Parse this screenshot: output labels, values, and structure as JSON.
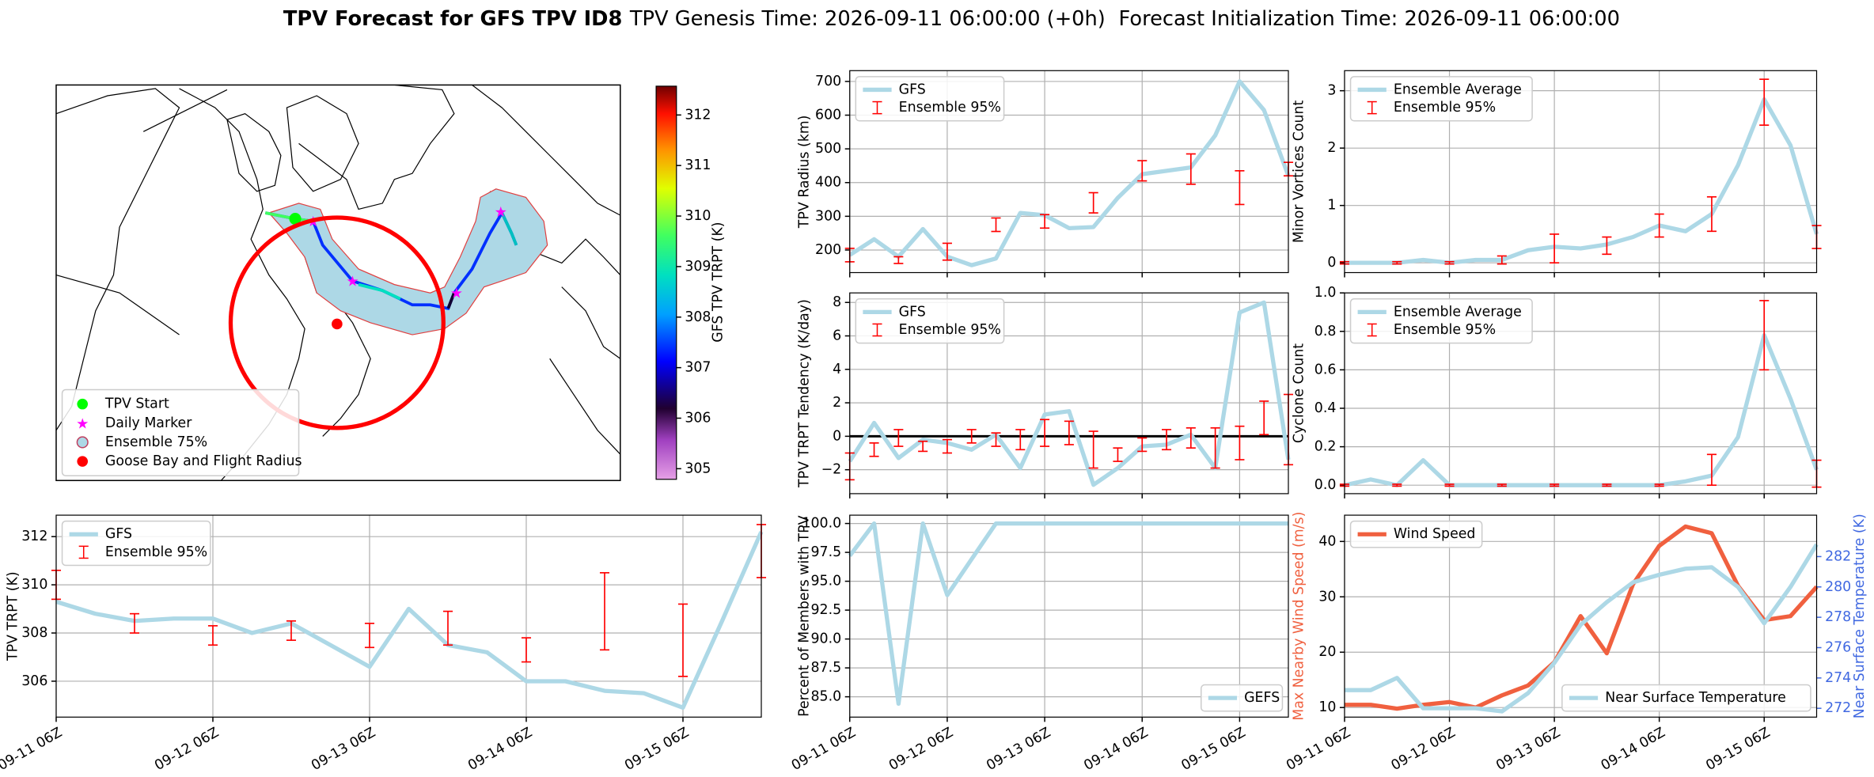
{
  "title": {
    "bold": "TPV Forecast for GFS TPV ID8",
    "genesis": "TPV Genesis Time: 2026-09-11 06:00:00 (+0h)",
    "init": "Forecast Initialization Time: 2026-09-11 06:00:00"
  },
  "chart_data": [
    {
      "type": "map",
      "colorbar_label": "GFS TPV TRPT (K)",
      "clim": [
        304.79,
        312.57
      ],
      "cticks": [
        305,
        306,
        307,
        308,
        309,
        310,
        311,
        312
      ],
      "legend_corner": "lower left",
      "legend": [
        {
          "name": "TPV Start",
          "color": "#00ff00",
          "marker": "circle"
        },
        {
          "name": "Daily Marker",
          "color": "#ff00ff",
          "marker": "star"
        },
        {
          "name": "Ensemble 75%",
          "color": "#add8e6",
          "marker": "ring"
        },
        {
          "name": "Goose Bay and Flight Radius",
          "color": "#ff0000",
          "marker": "circle"
        }
      ]
    },
    {
      "type": "line",
      "ylabel": "TPV Radius (km)",
      "ylim": [
        133,
        732
      ],
      "yticks": [
        200,
        300,
        400,
        500,
        600,
        700
      ],
      "grid": true,
      "sharex": true,
      "legend": "upper left",
      "categories": [
        "09-11 06Z",
        "09-11 12Z",
        "09-11 18Z",
        "09-12 00Z",
        "09-12 06Z",
        "09-12 12Z",
        "09-12 18Z",
        "09-13 00Z",
        "09-13 06Z",
        "09-13 12Z",
        "09-13 18Z",
        "09-14 00Z",
        "09-14 06Z",
        "09-14 12Z",
        "09-14 18Z",
        "09-15 00Z",
        "09-15 06Z",
        "09-15 12Z",
        "09-15 18Z"
      ],
      "xticks": [
        "09-11 06Z",
        "09-12 06Z",
        "09-13 06Z",
        "09-14 06Z",
        "09-15 06Z"
      ],
      "series": [
        {
          "name": "GFS",
          "color": "#add8e6",
          "values": [
            185,
            232,
            180,
            262,
            180,
            155,
            175,
            310,
            303,
            265,
            268,
            355,
            425,
            435,
            445,
            540,
            700,
            615,
            420
          ]
        },
        {
          "name": "Ensemble 95%",
          "color": "#ff0000",
          "type": "errorbar",
          "x": [
            "09-11 06Z",
            "09-11 18Z",
            "09-12 06Z",
            "09-12 18Z",
            "09-13 06Z",
            "09-13 18Z",
            "09-14 06Z",
            "09-14 18Z",
            "09-15 06Z",
            "09-15 18Z"
          ],
          "values": [
            185,
            170,
            195,
            275,
            285,
            340,
            435,
            440,
            385,
            440
          ],
          "errors": [
            20,
            10,
            25,
            20,
            20,
            30,
            30,
            45,
            50,
            20
          ]
        }
      ]
    },
    {
      "type": "line",
      "ylabel": "Minor Vortices Count",
      "ylim": [
        -0.17,
        3.35
      ],
      "yticks": [
        0,
        1,
        2,
        3
      ],
      "grid": true,
      "sharex": true,
      "legend": "upper left",
      "categories": [
        "09-11 06Z",
        "09-11 12Z",
        "09-11 18Z",
        "09-12 00Z",
        "09-12 06Z",
        "09-12 12Z",
        "09-12 18Z",
        "09-13 00Z",
        "09-13 06Z",
        "09-13 12Z",
        "09-13 18Z",
        "09-14 00Z",
        "09-14 06Z",
        "09-14 12Z",
        "09-14 18Z",
        "09-15 00Z",
        "09-15 06Z",
        "09-15 12Z",
        "09-15 18Z"
      ],
      "xticks": [
        "09-11 06Z",
        "09-12 06Z",
        "09-13 06Z",
        "09-14 06Z",
        "09-15 06Z"
      ],
      "series": [
        {
          "name": "Ensemble Average",
          "color": "#add8e6",
          "values": [
            0,
            0,
            0,
            0.05,
            0,
            0.05,
            0.05,
            0.22,
            0.28,
            0.25,
            0.32,
            0.45,
            0.65,
            0.55,
            0.85,
            1.7,
            2.85,
            2.05,
            0.5
          ]
        },
        {
          "name": "Ensemble 95%",
          "color": "#ff0000",
          "type": "errorbar",
          "x": [
            "09-11 06Z",
            "09-11 18Z",
            "09-12 06Z",
            "09-12 18Z",
            "09-13 06Z",
            "09-13 18Z",
            "09-14 06Z",
            "09-14 18Z",
            "09-15 06Z",
            "09-15 18Z"
          ],
          "values": [
            0,
            0,
            0,
            0.05,
            0.25,
            0.3,
            0.65,
            0.85,
            2.8,
            0.45
          ],
          "errors": [
            0.02,
            0.02,
            0.02,
            0.07,
            0.25,
            0.15,
            0.2,
            0.3,
            0.4,
            0.2
          ]
        }
      ]
    },
    {
      "type": "line",
      "ylabel": "TPV TRPT Tendency (K/day)",
      "ylim": [
        -3.43,
        8.57
      ],
      "yticks": [
        {
          "value": -2,
          "label": "−2"
        },
        0,
        2,
        4,
        6,
        8
      ],
      "grid": true,
      "sharex": true,
      "legend": "upper left",
      "hline": 0,
      "categories": [
        "09-11 06Z",
        "09-11 12Z",
        "09-11 18Z",
        "09-12 00Z",
        "09-12 06Z",
        "09-12 12Z",
        "09-12 18Z",
        "09-13 00Z",
        "09-13 06Z",
        "09-13 12Z",
        "09-13 18Z",
        "09-14 00Z",
        "09-14 06Z",
        "09-14 12Z",
        "09-14 18Z",
        "09-15 00Z",
        "09-15 06Z",
        "09-15 12Z",
        "09-15 18Z"
      ],
      "xticks": [
        "09-11 06Z",
        "09-12 06Z",
        "09-13 06Z",
        "09-14 06Z",
        "09-15 06Z"
      ],
      "series": [
        {
          "name": "GFS",
          "color": "#add8e6",
          "values": [
            -1.5,
            0.8,
            -1.3,
            -0.2,
            -0.4,
            -0.8,
            0.1,
            -1.9,
            1.3,
            1.5,
            -2.9,
            -1.9,
            -0.6,
            -0.5,
            0.1,
            -1.9,
            7.4,
            8.0,
            -1.4
          ]
        },
        {
          "name": "Ensemble 95%",
          "color": "#ff0000",
          "type": "errorbar",
          "x": [
            "09-11 06Z",
            "09-11 12Z",
            "09-11 18Z",
            "09-12 00Z",
            "09-12 06Z",
            "09-12 12Z",
            "09-12 18Z",
            "09-13 00Z",
            "09-13 06Z",
            "09-13 12Z",
            "09-13 18Z",
            "09-14 00Z",
            "09-14 06Z",
            "09-14 12Z",
            "09-14 18Z",
            "09-15 00Z",
            "09-15 06Z",
            "09-15 12Z",
            "09-15 18Z"
          ],
          "values": [
            -1.8,
            -0.8,
            -0.1,
            -0.6,
            -0.6,
            0,
            -0.2,
            -0.2,
            0.2,
            0.2,
            -0.8,
            -1.1,
            -0.5,
            -0.2,
            -0.1,
            -0.7,
            -0.4,
            1.1,
            0.4
          ],
          "errors": [
            0.8,
            0.4,
            0.5,
            0.3,
            0.4,
            0.4,
            0.4,
            0.6,
            0.8,
            0.7,
            1.1,
            0.4,
            0.4,
            0.6,
            0.6,
            1.2,
            1.0,
            1.0,
            2.1
          ]
        }
      ]
    },
    {
      "type": "line",
      "ylabel": "Cyclone Count",
      "ylim": [
        -0.044,
        1.0
      ],
      "yticks": [
        {
          "value": 0,
          "label": "0.0"
        },
        0.2,
        0.4,
        0.6,
        0.8,
        {
          "value": 1,
          "label": "1.0"
        }
      ],
      "grid": true,
      "sharex": true,
      "legend": "upper left",
      "categories": [
        "09-11 06Z",
        "09-11 12Z",
        "09-11 18Z",
        "09-12 00Z",
        "09-12 06Z",
        "09-12 12Z",
        "09-12 18Z",
        "09-13 00Z",
        "09-13 06Z",
        "09-13 12Z",
        "09-13 18Z",
        "09-14 00Z",
        "09-14 06Z",
        "09-14 12Z",
        "09-14 18Z",
        "09-15 00Z",
        "09-15 06Z",
        "09-15 12Z",
        "09-15 18Z"
      ],
      "xticks": [
        "09-11 06Z",
        "09-12 06Z",
        "09-13 06Z",
        "09-14 06Z",
        "09-15 06Z"
      ],
      "series": [
        {
          "name": "Ensemble Average",
          "color": "#add8e6",
          "values": [
            0,
            0.03,
            0,
            0.13,
            0,
            0,
            0,
            0,
            0,
            0,
            0,
            0,
            0,
            0.02,
            0.05,
            0.25,
            0.78,
            0.45,
            0.08
          ]
        },
        {
          "name": "Ensemble 95%",
          "color": "#ff0000",
          "type": "errorbar",
          "x": [
            "09-11 06Z",
            "09-11 18Z",
            "09-12 06Z",
            "09-12 18Z",
            "09-13 06Z",
            "09-13 18Z",
            "09-14 06Z",
            "09-14 18Z",
            "09-15 06Z",
            "09-15 18Z"
          ],
          "values": [
            0,
            0,
            0,
            0,
            0,
            0,
            0,
            0.08,
            0.78,
            0.06
          ],
          "errors": [
            0.005,
            0.005,
            0.005,
            0.005,
            0.005,
            0.005,
            0.005,
            0.08,
            0.18,
            0.07
          ]
        }
      ]
    },
    {
      "type": "line",
      "ylabel": "TPV TRPT (K)",
      "ylim": [
        304.51,
        312.89
      ],
      "yticks": [
        306,
        308,
        310,
        312
      ],
      "grid": true,
      "legend": "upper left",
      "categories": [
        "09-11 06Z",
        "09-11 12Z",
        "09-11 18Z",
        "09-12 00Z",
        "09-12 06Z",
        "09-12 12Z",
        "09-12 18Z",
        "09-13 00Z",
        "09-13 06Z",
        "09-13 12Z",
        "09-13 18Z",
        "09-14 00Z",
        "09-14 06Z",
        "09-14 12Z",
        "09-14 18Z",
        "09-15 00Z",
        "09-15 06Z",
        "09-15 12Z",
        "09-15 18Z"
      ],
      "xticks": [
        "09-11 06Z",
        "09-12 06Z",
        "09-13 06Z",
        "09-14 06Z",
        "09-15 06Z"
      ],
      "series": [
        {
          "name": "GFS",
          "color": "#add8e6",
          "values": [
            309.3,
            308.8,
            308.5,
            308.6,
            308.6,
            308.0,
            308.4,
            307.5,
            306.6,
            309.0,
            307.5,
            307.2,
            306.0,
            306.0,
            305.6,
            305.5,
            304.9,
            308.5,
            312.2
          ]
        },
        {
          "name": "Ensemble 95%",
          "color": "#ff0000",
          "type": "errorbar",
          "x": [
            "09-11 06Z",
            "09-11 18Z",
            "09-12 06Z",
            "09-12 18Z",
            "09-13 06Z",
            "09-13 18Z",
            "09-14 06Z",
            "09-14 18Z",
            "09-15 06Z",
            "09-15 18Z"
          ],
          "values": [
            310.0,
            308.4,
            307.9,
            308.1,
            307.9,
            308.2,
            307.3,
            308.9,
            307.7,
            311.4
          ],
          "errors": [
            0.6,
            0.4,
            0.4,
            0.4,
            0.5,
            0.7,
            0.5,
            1.6,
            1.5,
            1.1
          ]
        }
      ]
    },
    {
      "type": "line",
      "ylabel": "Percent of Members with TPV",
      "ylim": [
        83.24,
        100.72
      ],
      "yticks": [
        {
          "value": 85,
          "label": "85.0"
        },
        87.5,
        {
          "value": 90,
          "label": "90.0"
        },
        92.5,
        {
          "value": 95,
          "label": "95.0"
        },
        97.5,
        {
          "value": 100,
          "label": "100.0"
        }
      ],
      "grid": true,
      "legend": "lower right",
      "categories": [
        "09-11 06Z",
        "09-11 12Z",
        "09-11 18Z",
        "09-12 00Z",
        "09-12 06Z",
        "09-12 12Z",
        "09-12 18Z",
        "09-13 00Z",
        "09-13 06Z",
        "09-13 12Z",
        "09-13 18Z",
        "09-14 00Z",
        "09-14 06Z",
        "09-14 12Z",
        "09-14 18Z",
        "09-15 00Z",
        "09-15 06Z",
        "09-15 12Z",
        "09-15 18Z"
      ],
      "xticks": [
        "09-11 06Z",
        "09-12 06Z",
        "09-13 06Z",
        "09-14 06Z",
        "09-15 06Z"
      ],
      "series": [
        {
          "name": "GEFS",
          "color": "#add8e6",
          "values": [
            97.2,
            100,
            84.4,
            100,
            93.8,
            96.9,
            100,
            100,
            100,
            100,
            100,
            100,
            100,
            100,
            100,
            100,
            100,
            100,
            100
          ]
        }
      ]
    },
    {
      "type": "line",
      "ylabel": "Max Nearby Wind Speed (m/s)",
      "ylabel_color": "#f0603f",
      "y2label": "Near Surface Temperature (K)",
      "y2label_color": "#4169e1",
      "ylim": [
        8.27,
        44.75
      ],
      "yticks": [
        10,
        20,
        30,
        40
      ],
      "y2lim": [
        271.42,
        284.73
      ],
      "y2ticks": [
        272,
        274,
        276,
        278,
        280,
        282
      ],
      "grid": true,
      "legend": "upper left",
      "categories": [
        "09-11 06Z",
        "09-11 12Z",
        "09-11 18Z",
        "09-12 00Z",
        "09-12 06Z",
        "09-12 12Z",
        "09-12 18Z",
        "09-13 00Z",
        "09-13 06Z",
        "09-13 12Z",
        "09-13 18Z",
        "09-14 00Z",
        "09-14 06Z",
        "09-14 12Z",
        "09-14 18Z",
        "09-15 00Z",
        "09-15 06Z",
        "09-15 12Z",
        "09-15 18Z"
      ],
      "xticks": [
        "09-11 06Z",
        "09-12 06Z",
        "09-13 06Z",
        "09-14 06Z",
        "09-15 06Z"
      ],
      "series": [
        {
          "name": "Wind Speed",
          "color": "#f0603f",
          "values": [
            10.5,
            10.5,
            9.8,
            10.5,
            11.0,
            10.0,
            12.2,
            14.0,
            18.2,
            26.5,
            19.8,
            32.3,
            39.2,
            42.7,
            41.5,
            32.0,
            25.8,
            26.5,
            31.8
          ]
        },
        {
          "name": "Near Surface Temperature",
          "color": "#add8e6",
          "axis": "y2",
          "legend": "lower right",
          "values": [
            273.2,
            273.2,
            274.0,
            272.0,
            272.0,
            272.0,
            271.8,
            273.0,
            275.0,
            277.5,
            279.0,
            280.3,
            280.8,
            281.2,
            281.3,
            280.0,
            277.6,
            280.0,
            282.8
          ]
        }
      ]
    }
  ]
}
